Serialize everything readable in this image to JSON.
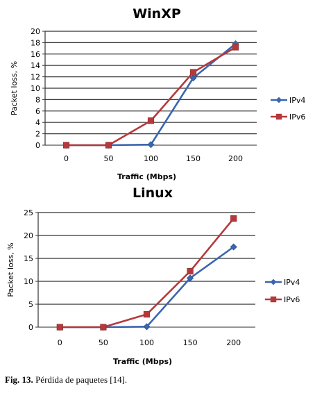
{
  "chart_data": [
    {
      "type": "line",
      "title": "WinXP",
      "xlabel": "Traffic (Mbps)",
      "ylabel": "Packet loss, %",
      "categories": [
        "0",
        "50",
        "100",
        "150",
        "200"
      ],
      "ylim": [
        0,
        20
      ],
      "yticks": [
        0,
        2,
        4,
        6,
        8,
        10,
        12,
        14,
        16,
        18,
        20
      ],
      "grid": true,
      "legend": "right",
      "series": [
        {
          "name": "IPv4",
          "values": [
            0,
            0,
            0.1,
            11.8,
            17.8
          ],
          "color": "#3a66b0",
          "marker": "diamond"
        },
        {
          "name": "IPv6",
          "values": [
            0,
            0,
            4.3,
            12.8,
            17.2
          ],
          "color": "#b5393b",
          "marker": "square"
        }
      ]
    },
    {
      "type": "line",
      "title": "Linux",
      "xlabel": "Traffic (Mbps)",
      "ylabel": "Packet loss, %",
      "categories": [
        "0",
        "50",
        "100",
        "150",
        "200"
      ],
      "ylim": [
        0,
        25
      ],
      "yticks": [
        0,
        5,
        10,
        15,
        20,
        25
      ],
      "grid": true,
      "legend": "right",
      "series": [
        {
          "name": "IPv4",
          "values": [
            0,
            0,
            0.1,
            10.7,
            17.5
          ],
          "color": "#3a66b0",
          "marker": "diamond"
        },
        {
          "name": "IPv6",
          "values": [
            0,
            0,
            2.8,
            12.2,
            23.7
          ],
          "color": "#b5393b",
          "marker": "square"
        }
      ]
    }
  ],
  "caption": {
    "label": "Fig. 13.",
    "text": " Pérdida de paquetes [14]."
  }
}
